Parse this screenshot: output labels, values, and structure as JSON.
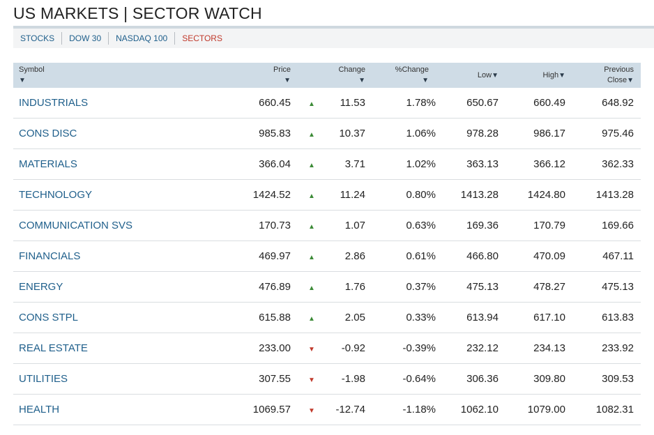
{
  "page": {
    "title": "US MARKETS | SECTOR WATCH"
  },
  "nav": {
    "items": [
      {
        "label": "STOCKS",
        "active": false
      },
      {
        "label": "DOW 30",
        "active": false
      },
      {
        "label": "NASDAQ 100",
        "active": false
      },
      {
        "label": "SECTORS",
        "active": true
      }
    ]
  },
  "table": {
    "headers": {
      "symbol": "Symbol",
      "price": "Price",
      "change": "Change",
      "pct_change": "%Change",
      "low": "Low",
      "high": "High",
      "prev_close_1": "Previous",
      "prev_close_2": "Close",
      "sort_arrow": "▼"
    },
    "rows": [
      {
        "symbol": "INDUSTRIALS",
        "price": "660.45",
        "dir": "up",
        "change": "11.53",
        "pct": "1.78%",
        "low": "650.67",
        "high": "660.49",
        "prev": "648.92"
      },
      {
        "symbol": "CONS DISC",
        "price": "985.83",
        "dir": "up",
        "change": "10.37",
        "pct": "1.06%",
        "low": "978.28",
        "high": "986.17",
        "prev": "975.46"
      },
      {
        "symbol": "MATERIALS",
        "price": "366.04",
        "dir": "up",
        "change": "3.71",
        "pct": "1.02%",
        "low": "363.13",
        "high": "366.12",
        "prev": "362.33"
      },
      {
        "symbol": "TECHNOLOGY",
        "price": "1424.52",
        "dir": "up",
        "change": "11.24",
        "pct": "0.80%",
        "low": "1413.28",
        "high": "1424.80",
        "prev": "1413.28"
      },
      {
        "symbol": "COMMUNICATION SVS",
        "price": "170.73",
        "dir": "up",
        "change": "1.07",
        "pct": "0.63%",
        "low": "169.36",
        "high": "170.79",
        "prev": "169.66"
      },
      {
        "symbol": "FINANCIALS",
        "price": "469.97",
        "dir": "up",
        "change": "2.86",
        "pct": "0.61%",
        "low": "466.80",
        "high": "470.09",
        "prev": "467.11"
      },
      {
        "symbol": "ENERGY",
        "price": "476.89",
        "dir": "up",
        "change": "1.76",
        "pct": "0.37%",
        "low": "475.13",
        "high": "478.27",
        "prev": "475.13"
      },
      {
        "symbol": "CONS STPL",
        "price": "615.88",
        "dir": "up",
        "change": "2.05",
        "pct": "0.33%",
        "low": "613.94",
        "high": "617.10",
        "prev": "613.83"
      },
      {
        "symbol": "REAL ESTATE",
        "price": "233.00",
        "dir": "down",
        "change": "-0.92",
        "pct": "-0.39%",
        "low": "232.12",
        "high": "234.13",
        "prev": "233.92"
      },
      {
        "symbol": "UTILITIES",
        "price": "307.55",
        "dir": "down",
        "change": "-1.98",
        "pct": "-0.64%",
        "low": "306.36",
        "high": "309.80",
        "prev": "309.53"
      },
      {
        "symbol": "HEALTH",
        "price": "1069.57",
        "dir": "down",
        "change": "-12.74",
        "pct": "-1.18%",
        "low": "1062.10",
        "high": "1079.00",
        "prev": "1082.31"
      }
    ]
  },
  "colors": {
    "up": "#3c8b37",
    "down": "#c0392b",
    "link": "#1f5f8b",
    "header_bg": "#cfdce6"
  },
  "icons": {
    "up": "triangle-up-icon",
    "down": "triangle-down-icon",
    "sort": "sort-down-arrow-icon"
  }
}
